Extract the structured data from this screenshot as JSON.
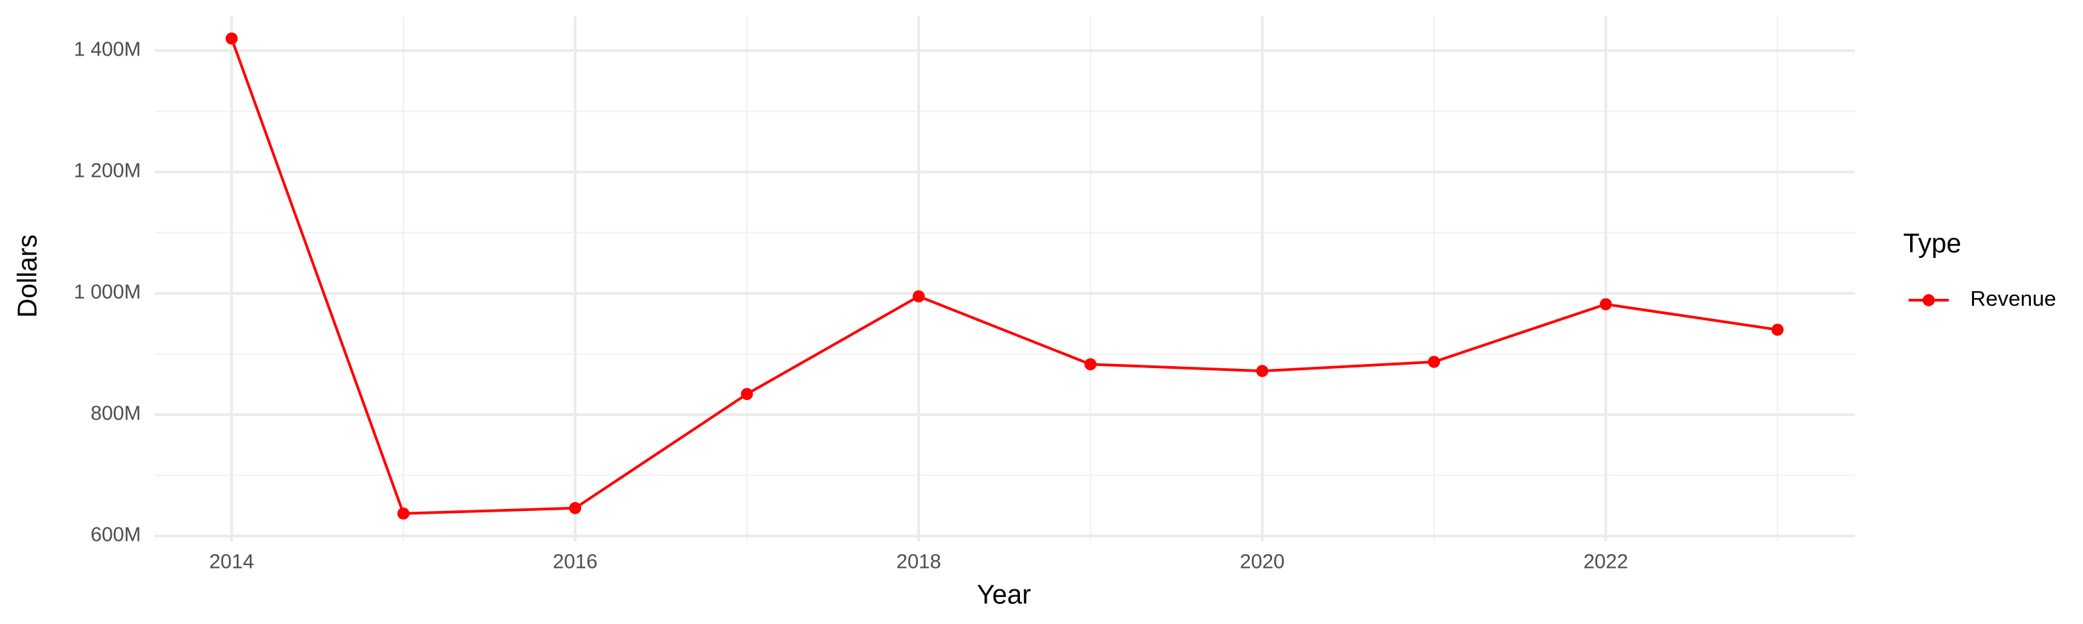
{
  "chart_data": {
    "type": "line",
    "x_label": "Year",
    "y_label": "Dollars",
    "x": [
      2014,
      2015,
      2016,
      2017,
      2018,
      2019,
      2020,
      2021,
      2022,
      2023
    ],
    "series": [
      {
        "name": "Revenue",
        "color": "#ff0000",
        "values": [
          1420000000,
          637000000,
          646000000,
          834000000,
          995000000,
          883000000,
          872000000,
          887000000,
          982000000,
          940000000
        ]
      }
    ],
    "xlim": [
      2013.55,
      2023.45
    ],
    "xticks": [
      2014,
      2016,
      2018,
      2020,
      2022
    ],
    "ylim": [
      591000000,
      1457000000
    ],
    "yticks": [
      {
        "value": 600000000,
        "label": "600M"
      },
      {
        "value": 800000000,
        "label": "800M"
      },
      {
        "value": 1000000000,
        "label": "1 000M"
      },
      {
        "value": 1200000000,
        "label": "1 200M"
      },
      {
        "value": 1400000000,
        "label": "1 400M"
      }
    ],
    "grid": true,
    "legend_title": "Type",
    "legend_position": "right"
  }
}
